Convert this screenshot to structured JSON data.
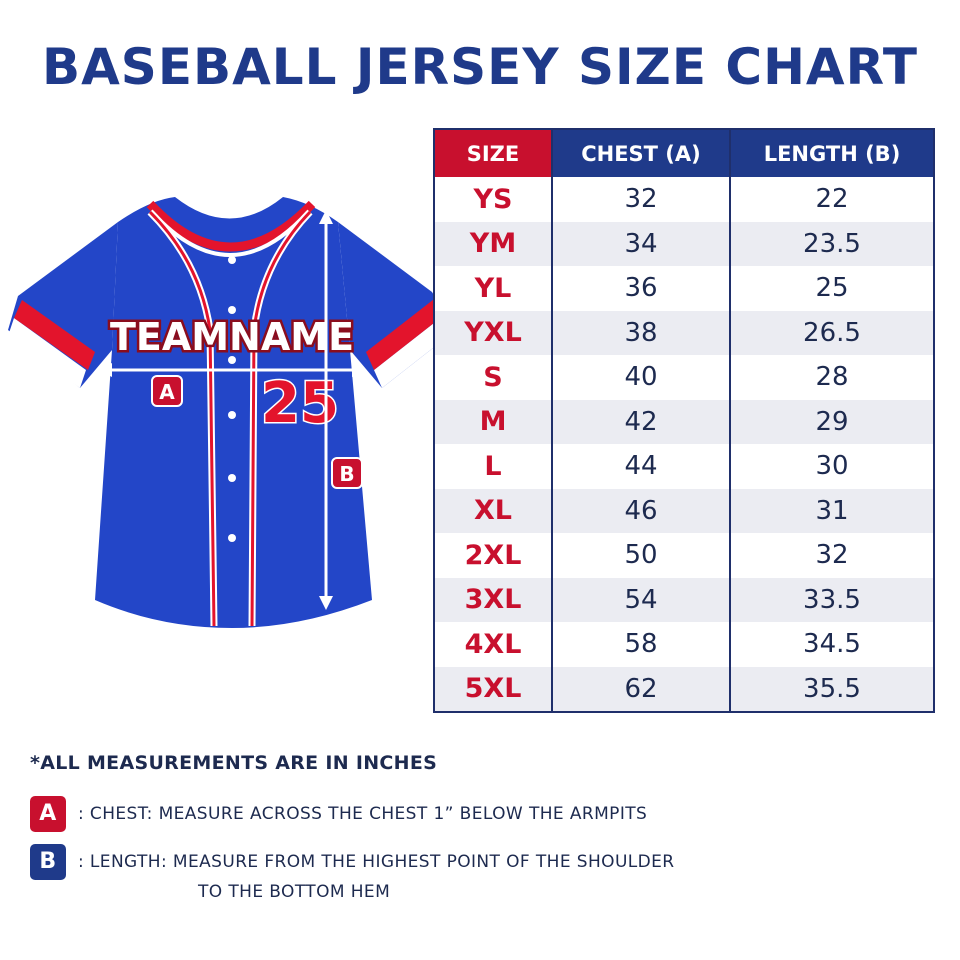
{
  "title": "BASEBALL JERSEY SIZE CHART",
  "jersey": {
    "team_name": "TEAMNAME",
    "number": "25",
    "marker_a": "A",
    "marker_b": "B",
    "colors": {
      "body": "#2346c8",
      "trim_red": "#e3142c",
      "trim_white": "#ffffff",
      "outline": "#8a0d1e"
    }
  },
  "table": {
    "headers": [
      "SIZE",
      "CHEST (A)",
      "LENGTH (B)"
    ],
    "rows": [
      [
        "YS",
        "32",
        "22"
      ],
      [
        "YM",
        "34",
        "23.5"
      ],
      [
        "YL",
        "36",
        "25"
      ],
      [
        "YXL",
        "38",
        "26.5"
      ],
      [
        "S",
        "40",
        "28"
      ],
      [
        "M",
        "42",
        "29"
      ],
      [
        "L",
        "44",
        "30"
      ],
      [
        "XL",
        "46",
        "31"
      ],
      [
        "2XL",
        "50",
        "32"
      ],
      [
        "3XL",
        "54",
        "33.5"
      ],
      [
        "4XL",
        "58",
        "34.5"
      ],
      [
        "5XL",
        "62",
        "35.5"
      ]
    ]
  },
  "notes": {
    "unit_note": "*ALL MEASUREMENTS ARE IN INCHES",
    "a_badge": "A",
    "a_text": ": CHEST: MEASURE ACROSS THE CHEST 1” BELOW THE ARMPITS",
    "b_badge": "B",
    "b_text_line1": ": LENGTH:  MEASURE FROM THE HIGHEST POINT OF THE SHOULDER",
    "b_text_line2": "TO THE BOTTOM HEM"
  },
  "colors": {
    "accent_red": "#c8102e",
    "accent_blue": "#1f3a8a",
    "text": "#1d2a4f"
  }
}
